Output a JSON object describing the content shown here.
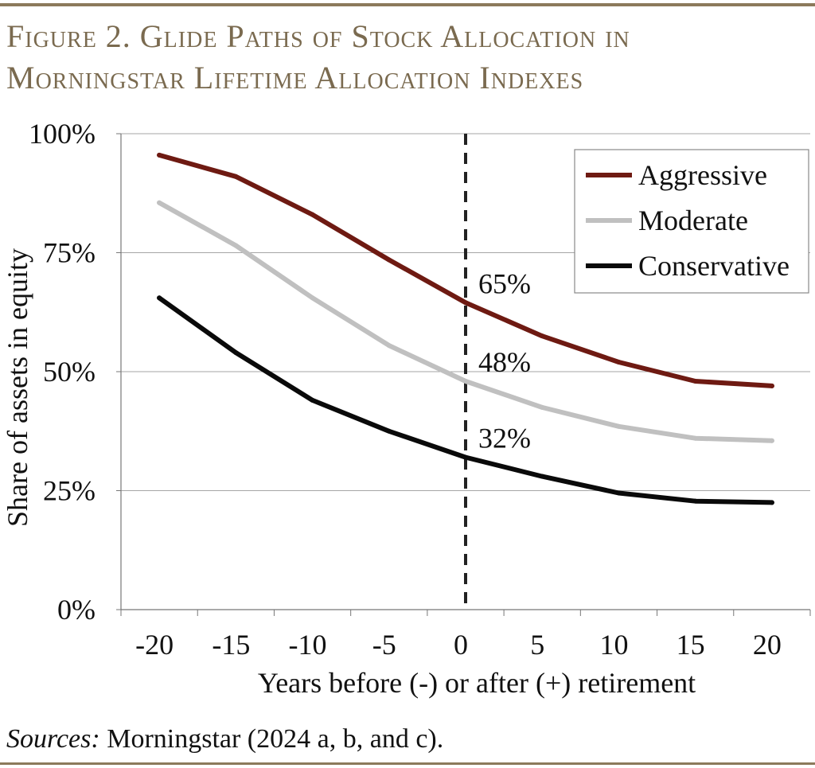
{
  "title_line1": "Figure 2. Glide Paths of Stock Allocation in",
  "title_line2": "Morningstar Lifetime Allocation Indexes",
  "source_label": "Sources:",
  "source_text": " Morningstar (2024 a, b, and c).",
  "chart_data": {
    "type": "line",
    "title": "Figure 2. Glide Paths of Stock Allocation in Morningstar Lifetime Allocation Indexes",
    "xlabel": "Years before (-) or after (+) retirement",
    "ylabel": "Share of assets in equity",
    "x": [
      -20,
      -15,
      -10,
      -5,
      0,
      5,
      10,
      15,
      20
    ],
    "x_tick_labels": [
      "-20",
      "-15",
      "-10",
      "-5",
      "0",
      "5",
      "10",
      "15",
      "20"
    ],
    "y_ticks": [
      0,
      25,
      50,
      75,
      100
    ],
    "y_tick_labels": [
      "0%",
      "25%",
      "50%",
      "75%",
      "100%"
    ],
    "ylim": [
      0,
      100
    ],
    "xlim": [
      -22.5,
      22.5
    ],
    "grid": "horizontal",
    "legend": "top-right",
    "reference_line": {
      "x": 0,
      "style": "dashed"
    },
    "series": [
      {
        "name": "Aggressive",
        "color": "#6e1a12",
        "values": [
          95.5,
          91,
          83,
          73.5,
          64.5,
          57.5,
          52,
          48,
          47
        ]
      },
      {
        "name": "Moderate",
        "color": "#c0c0c0",
        "values": [
          85.5,
          76.5,
          65.5,
          55.5,
          48,
          42.5,
          38.5,
          36,
          35.5
        ]
      },
      {
        "name": "Conservative",
        "color": "#0a0a0a",
        "values": [
          65.5,
          54,
          44,
          37.5,
          32,
          28,
          24.5,
          22.8,
          22.5
        ]
      }
    ],
    "annotations": [
      {
        "text": "65%",
        "x": 0,
        "y": 64.5
      },
      {
        "text": "48%",
        "x": 0,
        "y": 48
      },
      {
        "text": "32%",
        "x": 0,
        "y": 32
      }
    ]
  }
}
